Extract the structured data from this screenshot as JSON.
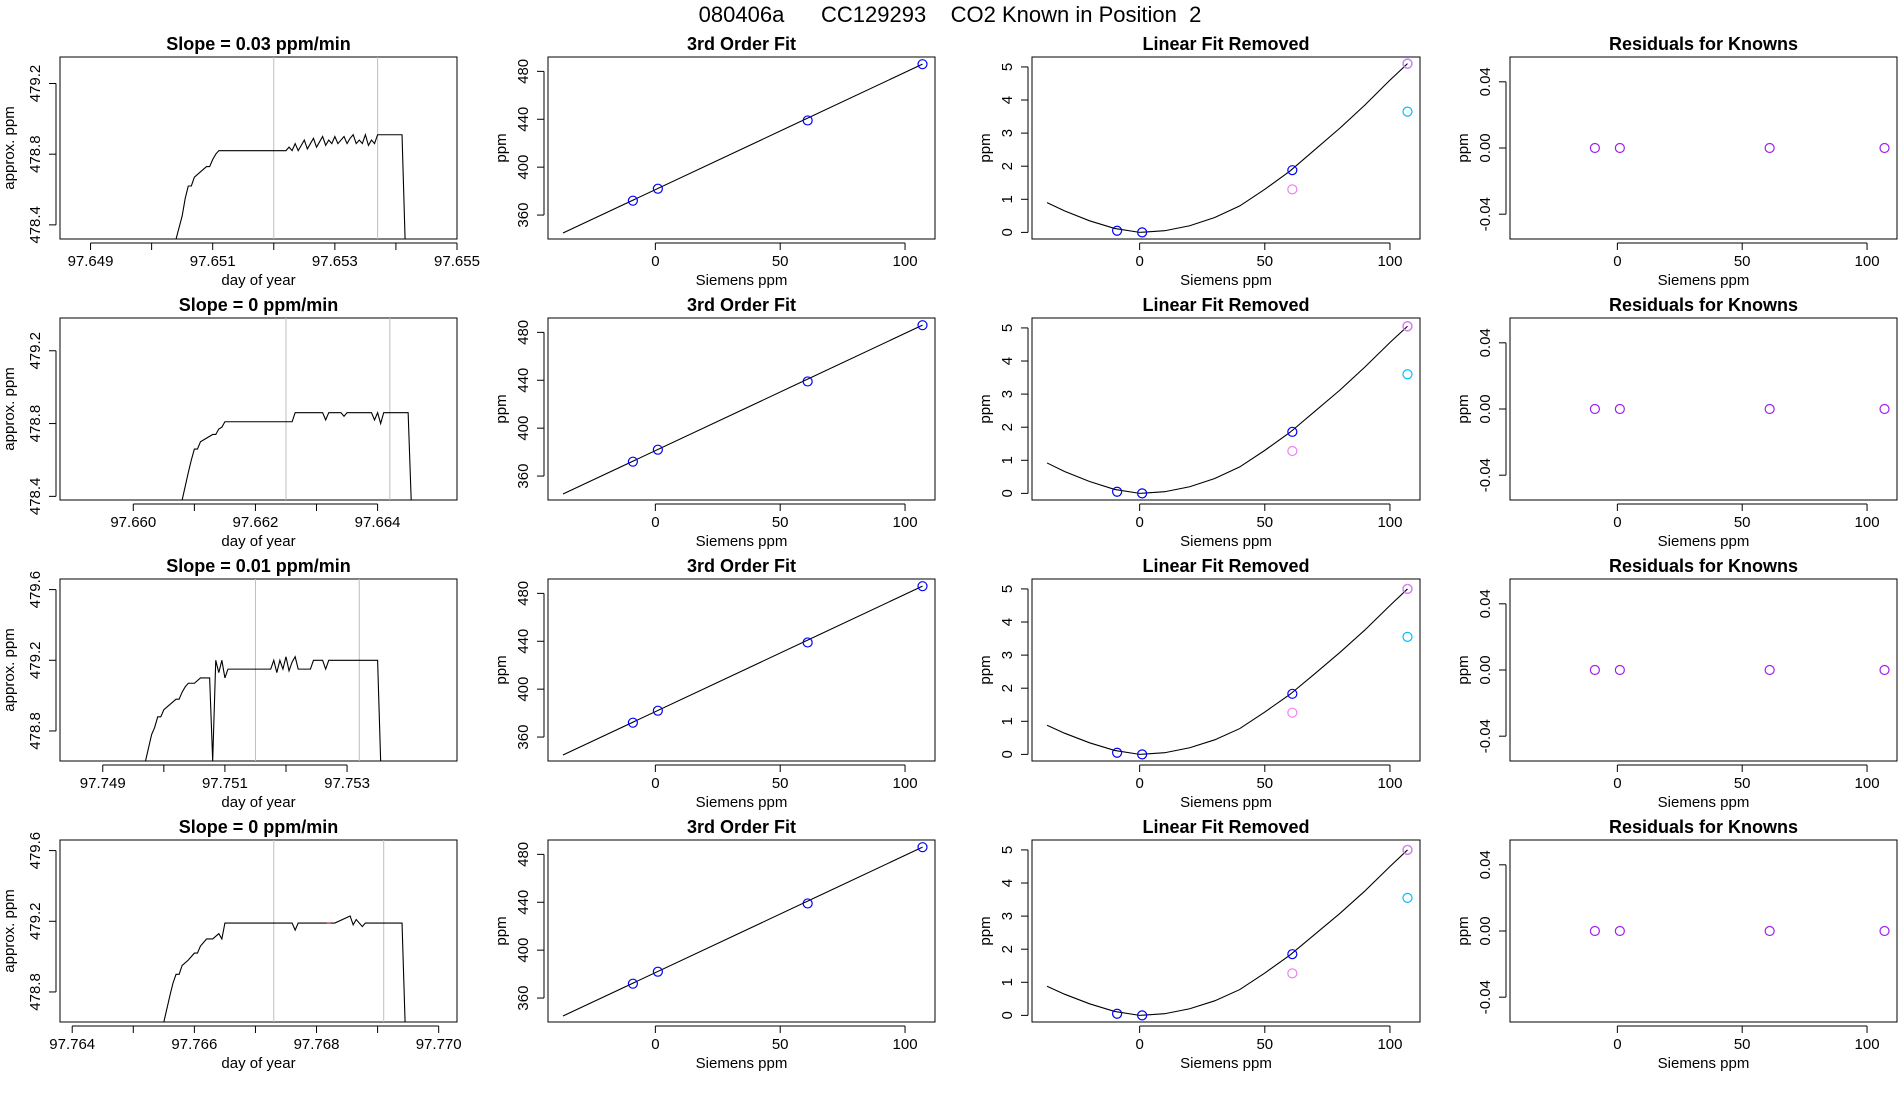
{
  "page_title": "080406a      CC129293    CO2 Known in Position  2",
  "colors": {
    "trace": "#000000",
    "vline": "#bebebe",
    "fit_point": "#0000ff",
    "linear_point_a": "#0000ff",
    "linear_point_b": "#ee82ee",
    "linear_point_c": "#00bfff",
    "residual_point": "#a020f0",
    "red_tick": "#ff0000"
  },
  "chart_data": [
    {
      "type": "line",
      "title": "Slope =  0.03  ppm/min",
      "xlabel": "day of year",
      "ylabel": "approx. ppm",
      "xlim": [
        97.6485,
        97.655
      ],
      "ylim": [
        478.32,
        479.35
      ],
      "xticks": [
        97.649,
        97.65,
        97.651,
        97.652,
        97.653,
        97.654,
        97.655
      ],
      "xtick_labels": [
        "97.649",
        "",
        "97.651",
        "",
        "97.653",
        "",
        "97.655"
      ],
      "yticks": [
        478.4,
        478.8,
        479.2
      ],
      "ytick_labels": [
        "478.4",
        "478.8",
        "479.2"
      ],
      "vlines": [
        97.652,
        97.6537
      ],
      "x": [
        97.6504,
        97.6505,
        97.65055,
        97.6506,
        97.65065,
        97.6507,
        97.6508,
        97.6509,
        97.65095,
        97.651,
        97.65105,
        97.6511,
        97.6513,
        97.6516,
        97.652,
        97.6522,
        97.65225,
        97.6523,
        97.65235,
        97.6524,
        97.65245,
        97.6525,
        97.65255,
        97.6526,
        97.65265,
        97.6527,
        97.65275,
        97.6528,
        97.65285,
        97.6529,
        97.65295,
        97.653,
        97.65305,
        97.6531,
        97.65315,
        97.6532,
        97.65325,
        97.6533,
        97.65335,
        97.6534,
        97.65345,
        97.6535,
        97.65355,
        97.6536,
        97.65365,
        97.6537,
        97.6538,
        97.654,
        97.6541,
        97.65415
      ],
      "y": [
        478.32,
        478.45,
        478.55,
        478.62,
        478.62,
        478.67,
        478.7,
        478.73,
        478.73,
        478.77,
        478.8,
        478.82,
        478.82,
        478.82,
        478.82,
        478.82,
        478.84,
        478.82,
        478.86,
        478.82,
        478.85,
        478.88,
        478.83,
        478.86,
        478.89,
        478.84,
        478.87,
        478.9,
        478.85,
        478.88,
        478.86,
        478.9,
        478.86,
        478.88,
        478.9,
        478.86,
        478.89,
        478.91,
        478.86,
        478.88,
        478.86,
        478.91,
        478.85,
        478.88,
        478.86,
        478.91,
        478.91,
        478.91,
        478.91,
        478.32
      ]
    },
    {
      "type": "scatter",
      "title": "3rd Order Fit",
      "xlabel": "Siemens ppm",
      "ylabel": "ppm",
      "xlim": [
        -43,
        112
      ],
      "ylim": [
        340,
        492
      ],
      "xticks": [
        0,
        50,
        100
      ],
      "yticks": [
        360,
        400,
        440,
        480
      ],
      "points_x": [
        -9,
        1,
        61,
        107
      ],
      "points_y": [
        372,
        382,
        439,
        486
      ],
      "fit_x": [
        -37,
        107
      ],
      "fit_y": [
        345,
        486
      ]
    },
    {
      "type": "scatter",
      "title": "Linear Fit Removed",
      "xlabel": "Siemens ppm",
      "ylabel": "ppm",
      "xlim": [
        -43,
        112
      ],
      "ylim": [
        -0.2,
        5.3
      ],
      "xticks": [
        0,
        50,
        100
      ],
      "yticks": [
        0,
        1,
        2,
        3,
        4,
        5
      ],
      "points_a_x": [
        -9,
        1,
        61,
        107
      ],
      "points_a_y": [
        0.05,
        0.0,
        1.88,
        5.1
      ],
      "points_b_x": [
        61
      ],
      "points_b_y": [
        1.3
      ],
      "points_c_x": [
        107
      ],
      "points_c_y": [
        3.65
      ],
      "curve_x": [
        -37,
        -30,
        -20,
        -10,
        0,
        10,
        20,
        30,
        40,
        50,
        60,
        70,
        80,
        90,
        100,
        107
      ],
      "curve_y": [
        0.9,
        0.65,
        0.35,
        0.12,
        0.0,
        0.05,
        0.2,
        0.45,
        0.8,
        1.3,
        1.85,
        2.5,
        3.15,
        3.85,
        4.6,
        5.1
      ]
    },
    {
      "type": "scatter",
      "title": "Residuals for Knowns",
      "xlabel": "Siemens ppm",
      "ylabel": "ppm",
      "xlim": [
        -43,
        112
      ],
      "ylim": [
        -0.055,
        0.055
      ],
      "xticks": [
        0,
        50,
        100
      ],
      "yticks": [
        -0.04,
        0.0,
        0.04
      ],
      "ytick_labels": [
        "-0.04",
        "0.00",
        "0.04"
      ],
      "points_x": [
        -9,
        1,
        61,
        107
      ],
      "points_y": [
        0,
        0,
        0,
        0
      ]
    },
    {
      "type": "line",
      "title": "Slope =  0  ppm/min",
      "xlabel": "day of year",
      "ylabel": "approx. ppm",
      "xlim": [
        97.6588,
        97.6653
      ],
      "ylim": [
        478.38,
        479.38
      ],
      "xticks": [
        97.66,
        97.661,
        97.662,
        97.663,
        97.664
      ],
      "xtick_labels": [
        "97.660",
        "",
        "97.662",
        "",
        "97.664"
      ],
      "yticks": [
        478.4,
        478.8,
        479.2
      ],
      "ytick_labels": [
        "478.4",
        "478.8",
        "479.2"
      ],
      "vlines": [
        97.6625,
        97.6642
      ],
      "x": [
        97.6608,
        97.6609,
        97.66095,
        97.661,
        97.66105,
        97.6611,
        97.6612,
        97.6613,
        97.66135,
        97.6614,
        97.66145,
        97.6615,
        97.6617,
        97.662,
        97.6623,
        97.6626,
        97.66265,
        97.6627,
        97.6629,
        97.6631,
        97.66315,
        97.6632,
        97.6634,
        97.66345,
        97.6635,
        97.6637,
        97.6639,
        97.66395,
        97.664,
        97.66405,
        97.6641,
        97.6643,
        97.6645,
        97.66455
      ],
      "y": [
        478.38,
        478.53,
        478.6,
        478.66,
        478.66,
        478.7,
        478.72,
        478.74,
        478.74,
        478.77,
        478.78,
        478.81,
        478.81,
        478.81,
        478.81,
        478.81,
        478.86,
        478.86,
        478.86,
        478.86,
        478.82,
        478.86,
        478.86,
        478.84,
        478.86,
        478.86,
        478.86,
        478.82,
        478.86,
        478.8,
        478.86,
        478.86,
        478.86,
        478.38
      ]
    },
    {
      "type": "scatter",
      "title": "3rd Order Fit",
      "xlabel": "Siemens ppm",
      "ylabel": "ppm",
      "xlim": [
        -43,
        112
      ],
      "ylim": [
        340,
        492
      ],
      "xticks": [
        0,
        50,
        100
      ],
      "yticks": [
        360,
        400,
        440,
        480
      ],
      "points_x": [
        -9,
        1,
        61,
        107
      ],
      "points_y": [
        372,
        382,
        439,
        486
      ],
      "fit_x": [
        -37,
        107
      ],
      "fit_y": [
        345,
        486
      ]
    },
    {
      "type": "scatter",
      "title": "Linear Fit Removed",
      "xlabel": "Siemens ppm",
      "ylabel": "ppm",
      "xlim": [
        -43,
        112
      ],
      "ylim": [
        -0.2,
        5.3
      ],
      "xticks": [
        0,
        50,
        100
      ],
      "yticks": [
        0,
        1,
        2,
        3,
        4,
        5
      ],
      "points_a_x": [
        -9,
        1,
        61,
        107
      ],
      "points_a_y": [
        0.05,
        0.0,
        1.86,
        5.05
      ],
      "points_b_x": [
        61
      ],
      "points_b_y": [
        1.28
      ],
      "points_c_x": [
        107
      ],
      "points_c_y": [
        3.6
      ],
      "curve_x": [
        -37,
        -30,
        -20,
        -10,
        0,
        10,
        20,
        30,
        40,
        50,
        60,
        70,
        80,
        90,
        100,
        107
      ],
      "curve_y": [
        0.92,
        0.66,
        0.36,
        0.12,
        0.0,
        0.05,
        0.2,
        0.45,
        0.8,
        1.3,
        1.84,
        2.48,
        3.12,
        3.82,
        4.56,
        5.05
      ]
    },
    {
      "type": "scatter",
      "title": "Residuals for Knowns",
      "xlabel": "Siemens ppm",
      "ylabel": "ppm",
      "xlim": [
        -43,
        112
      ],
      "ylim": [
        -0.055,
        0.055
      ],
      "xticks": [
        0,
        50,
        100
      ],
      "yticks": [
        -0.04,
        0.0,
        0.04
      ],
      "ytick_labels": [
        "-0.04",
        "0.00",
        "0.04"
      ],
      "points_x": [
        -9,
        1,
        61,
        107
      ],
      "points_y": [
        0,
        0,
        0,
        0
      ]
    },
    {
      "type": "line",
      "title": "Slope =  0.01  ppm/min",
      "xlabel": "day of year",
      "ylabel": "approx. ppm",
      "xlim": [
        97.7483,
        97.7548
      ],
      "ylim": [
        478.63,
        479.66
      ],
      "xticks": [
        97.749,
        97.75,
        97.751,
        97.752,
        97.753
      ],
      "xtick_labels": [
        "97.749",
        "",
        "97.751",
        "",
        "97.753"
      ],
      "yticks": [
        478.8,
        479.2,
        479.6
      ],
      "ytick_labels": [
        "478.8",
        "479.2",
        "479.6"
      ],
      "vlines": [
        97.7515,
        97.7532
      ],
      "x": [
        97.7497,
        97.7498,
        97.74985,
        97.7499,
        97.74995,
        97.75,
        97.7501,
        97.7502,
        97.75025,
        97.7503,
        97.75035,
        97.7504,
        97.7505,
        97.7506,
        97.75075,
        97.7508,
        97.75085,
        97.7509,
        97.75095,
        97.751,
        97.75105,
        97.7511,
        97.7513,
        97.7516,
        97.75175,
        97.7518,
        97.75185,
        97.7519,
        97.75195,
        97.752,
        97.75205,
        97.7521,
        97.75215,
        97.7522,
        97.7524,
        97.75245,
        97.7525,
        97.7526,
        97.75265,
        97.7527,
        97.7529,
        97.7531,
        97.7533,
        97.7535,
        97.75355
      ],
      "y": [
        478.63,
        478.78,
        478.82,
        478.88,
        478.88,
        478.92,
        478.95,
        478.98,
        478.98,
        479.02,
        479.05,
        479.07,
        479.07,
        479.1,
        479.1,
        478.63,
        479.2,
        479.13,
        479.2,
        479.1,
        479.15,
        479.15,
        479.15,
        479.15,
        479.15,
        479.2,
        479.13,
        479.2,
        479.15,
        479.22,
        479.14,
        479.19,
        479.22,
        479.15,
        479.15,
        479.2,
        479.2,
        479.2,
        479.15,
        479.2,
        479.2,
        479.2,
        479.2,
        479.2,
        478.63
      ]
    },
    {
      "type": "scatter",
      "title": "3rd Order Fit",
      "xlabel": "Siemens ppm",
      "ylabel": "ppm",
      "xlim": [
        -43,
        112
      ],
      "ylim": [
        340,
        492
      ],
      "xticks": [
        0,
        50,
        100
      ],
      "yticks": [
        360,
        400,
        440,
        480
      ],
      "points_x": [
        -9,
        1,
        61,
        107
      ],
      "points_y": [
        372,
        382,
        439,
        486
      ],
      "fit_x": [
        -37,
        107
      ],
      "fit_y": [
        345,
        486
      ]
    },
    {
      "type": "scatter",
      "title": "Linear Fit Removed",
      "xlabel": "Siemens ppm",
      "ylabel": "ppm",
      "xlim": [
        -43,
        112
      ],
      "ylim": [
        -0.2,
        5.3
      ],
      "xticks": [
        0,
        50,
        100
      ],
      "yticks": [
        0,
        1,
        2,
        3,
        4,
        5
      ],
      "points_a_x": [
        -9,
        1,
        61,
        107
      ],
      "points_a_y": [
        0.05,
        0.0,
        1.83,
        5.0
      ],
      "points_b_x": [
        61
      ],
      "points_b_y": [
        1.26
      ],
      "points_c_x": [
        107
      ],
      "points_c_y": [
        3.55
      ],
      "curve_x": [
        -37,
        -30,
        -20,
        -10,
        0,
        10,
        20,
        30,
        40,
        50,
        60,
        70,
        80,
        90,
        100,
        107
      ],
      "curve_y": [
        0.88,
        0.64,
        0.35,
        0.12,
        0.0,
        0.05,
        0.2,
        0.44,
        0.78,
        1.28,
        1.81,
        2.44,
        3.08,
        3.76,
        4.5,
        5.0
      ]
    },
    {
      "type": "scatter",
      "title": "Residuals for Knowns",
      "xlabel": "Siemens ppm",
      "ylabel": "ppm",
      "xlim": [
        -43,
        112
      ],
      "ylim": [
        -0.055,
        0.055
      ],
      "xticks": [
        0,
        50,
        100
      ],
      "yticks": [
        -0.04,
        0.0,
        0.04
      ],
      "ytick_labels": [
        "-0.04",
        "0.00",
        "0.04"
      ],
      "points_x": [
        -9,
        1,
        61,
        107
      ],
      "points_y": [
        0,
        0,
        0,
        0
      ]
    },
    {
      "type": "line",
      "title": "Slope =  0  ppm/min",
      "xlabel": "day of year",
      "ylabel": "approx. ppm",
      "xlim": [
        97.7638,
        97.7703
      ],
      "ylim": [
        478.63,
        479.66
      ],
      "xticks": [
        97.764,
        97.765,
        97.766,
        97.767,
        97.768,
        97.769,
        97.77
      ],
      "xtick_labels": [
        "97.764",
        "",
        "97.766",
        "",
        "97.768",
        "",
        "97.770"
      ],
      "yticks": [
        478.8,
        479.2,
        479.6
      ],
      "ytick_labels": [
        "478.8",
        "479.2",
        "479.6"
      ],
      "vlines": [
        97.7673,
        97.7691
      ],
      "red_mark": [
        97.7682,
        479.19
      ],
      "x": [
        97.7655,
        97.7656,
        97.76565,
        97.7657,
        97.76575,
        97.7658,
        97.7659,
        97.766,
        97.76605,
        97.7661,
        97.76615,
        97.7662,
        97.7663,
        97.7664,
        97.76645,
        97.7665,
        97.7667,
        97.767,
        97.7673,
        97.7676,
        97.76765,
        97.7677,
        97.768,
        97.7683,
        97.76855,
        97.7686,
        97.76865,
        97.7687,
        97.76875,
        97.7688,
        97.769,
        97.7692,
        97.7694,
        97.76945
      ],
      "y": [
        478.63,
        478.78,
        478.85,
        478.9,
        478.9,
        478.95,
        478.98,
        479.02,
        479.02,
        479.06,
        479.08,
        479.1,
        479.1,
        479.13,
        479.1,
        479.19,
        479.19,
        479.19,
        479.19,
        479.19,
        479.15,
        479.19,
        479.19,
        479.19,
        479.23,
        479.18,
        479.21,
        479.19,
        479.17,
        479.19,
        479.19,
        479.19,
        479.19,
        478.63
      ]
    },
    {
      "type": "scatter",
      "title": "3rd Order Fit",
      "xlabel": "Siemens ppm",
      "ylabel": "ppm",
      "xlim": [
        -43,
        112
      ],
      "ylim": [
        340,
        492
      ],
      "xticks": [
        0,
        50,
        100
      ],
      "yticks": [
        360,
        400,
        440,
        480
      ],
      "points_x": [
        -9,
        1,
        61,
        107
      ],
      "points_y": [
        372,
        382,
        439,
        486
      ],
      "fit_x": [
        -37,
        107
      ],
      "fit_y": [
        345,
        486
      ]
    },
    {
      "type": "scatter",
      "title": "Linear Fit Removed",
      "xlabel": "Siemens ppm",
      "ylabel": "ppm",
      "xlim": [
        -43,
        112
      ],
      "ylim": [
        -0.2,
        5.3
      ],
      "xticks": [
        0,
        50,
        100
      ],
      "yticks": [
        0,
        1,
        2,
        3,
        4,
        5
      ],
      "points_a_x": [
        -9,
        1,
        61,
        107
      ],
      "points_a_y": [
        0.05,
        0.0,
        1.85,
        5.0
      ],
      "points_b_x": [
        61
      ],
      "points_b_y": [
        1.27
      ],
      "points_c_x": [
        107
      ],
      "points_c_y": [
        3.55
      ],
      "curve_x": [
        -37,
        -30,
        -20,
        -10,
        0,
        10,
        20,
        30,
        40,
        50,
        60,
        70,
        80,
        90,
        100,
        107
      ],
      "curve_y": [
        0.88,
        0.64,
        0.35,
        0.12,
        0.0,
        0.05,
        0.2,
        0.44,
        0.78,
        1.28,
        1.82,
        2.45,
        3.08,
        3.76,
        4.5,
        5.0
      ]
    },
    {
      "type": "scatter",
      "title": "Residuals for Knowns",
      "xlabel": "Siemens ppm",
      "ylabel": "ppm",
      "xlim": [
        -43,
        112
      ],
      "ylim": [
        -0.055,
        0.055
      ],
      "xticks": [
        0,
        50,
        100
      ],
      "yticks": [
        -0.04,
        0.0,
        0.04
      ],
      "ytick_labels": [
        "-0.04",
        "0.00",
        "0.04"
      ],
      "points_x": [
        -9,
        1,
        61,
        107
      ],
      "points_y": [
        0,
        0,
        0,
        0
      ]
    }
  ]
}
